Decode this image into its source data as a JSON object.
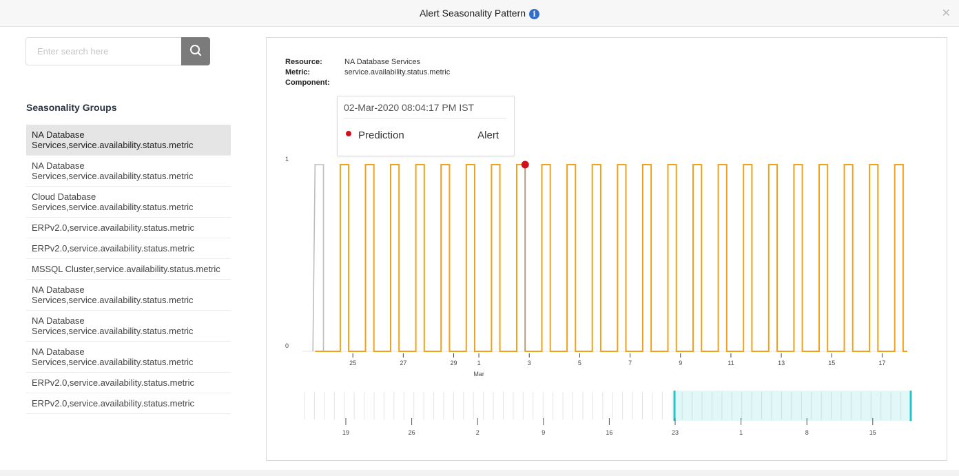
{
  "modal": {
    "title": "Alert Seasonality Pattern",
    "info_icon": "info-icon",
    "close_icon": "close-icon"
  },
  "search": {
    "placeholder": "Enter search here",
    "value": "",
    "button_icon": "search-icon"
  },
  "groups": {
    "heading": "Seasonality Groups",
    "items": [
      {
        "label": "NA Database Services,service.availability.status.metric",
        "selected": true
      },
      {
        "label": "NA Database Services,service.availability.status.metric",
        "selected": false
      },
      {
        "label": "Cloud Database Services,service.availability.status.metric",
        "selected": false
      },
      {
        "label": "ERPv2.0,service.availability.status.metric",
        "selected": false
      },
      {
        "label": "ERPv2.0,service.availability.status.metric",
        "selected": false
      },
      {
        "label": "MSSQL Cluster,service.availability.status.metric",
        "selected": false
      },
      {
        "label": "NA Database Services,service.availability.status.metric",
        "selected": false
      },
      {
        "label": "NA Database Services,service.availability.status.metric",
        "selected": false
      },
      {
        "label": "NA Database Services,service.availability.status.metric",
        "selected": false
      },
      {
        "label": "ERPv2.0,service.availability.status.metric",
        "selected": false
      },
      {
        "label": "ERPv2.0,service.availability.status.metric",
        "selected": false
      }
    ]
  },
  "details": {
    "resource_label": "Resource:",
    "resource": "NA Database Services",
    "metric_label": "Metric:",
    "metric": "service.availability.status.metric",
    "component_label": "Component:",
    "component": ""
  },
  "tooltip": {
    "timestamp": "02-Mar-2020 08:04:17 PM IST",
    "series": "Prediction",
    "value": "Alert",
    "dot_color": "#d0101b"
  },
  "chart_data": {
    "type": "line",
    "title": "",
    "ylim": [
      0,
      1
    ],
    "yticks": [
      "0",
      "1"
    ],
    "x_ticks": [
      "25",
      "27",
      "29",
      "1",
      "3",
      "5",
      "7",
      "9",
      "11",
      "13",
      "15",
      "17"
    ],
    "x_month_label": "Mar",
    "x_range": [
      "2020-02-23",
      "2020-03-18"
    ],
    "series": [
      {
        "color": "#bdbdbd",
        "points": [
          {
            "x": "2020-02-23T10:00",
            "y": 0
          },
          {
            "x": "2020-02-23T12:00",
            "y": 1
          },
          {
            "x": "2020-02-23T20:00",
            "y": 1
          },
          {
            "x": "2020-02-23T20:00",
            "y": 0
          },
          {
            "x": "2020-02-24T12:00",
            "y": 0
          }
        ]
      },
      {
        "color": "#f2a21a",
        "pattern": "daily pulse: value 1 from 12:00 to 20:00, 0 otherwise",
        "start": "2020-02-24",
        "days": 23
      }
    ],
    "highlight": {
      "x": "2020-03-02T20:04",
      "y": 1,
      "color": "#d0101b"
    },
    "navigator": {
      "ticks": [
        "19",
        "26",
        "2",
        "9",
        "16",
        "23",
        "1",
        "8",
        "15"
      ],
      "selected_range": [
        "23",
        "end"
      ],
      "selection_color": "#1fc8c8"
    }
  }
}
